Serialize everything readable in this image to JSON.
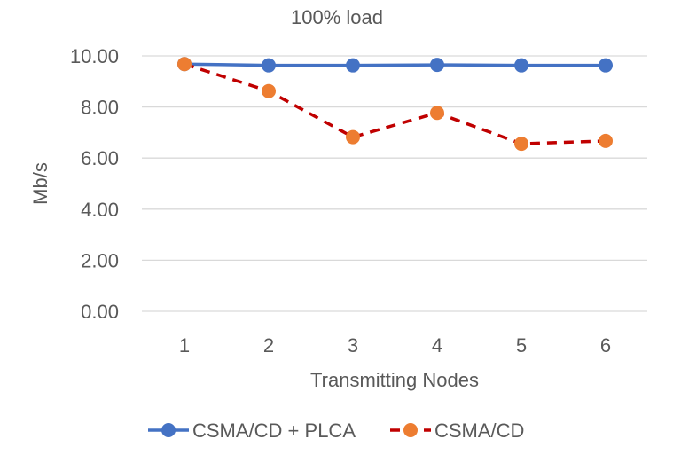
{
  "chart_data": {
    "type": "line",
    "title": "100% load",
    "xlabel": "Transmitting Nodes",
    "ylabel": "Mb/s",
    "categories": [
      "1",
      "2",
      "3",
      "4",
      "5",
      "6"
    ],
    "ylim": [
      0,
      10
    ],
    "yticks": [
      "0.00",
      "2.00",
      "4.00",
      "6.00",
      "8.00",
      "10.00"
    ],
    "grid": true,
    "legend_position": "bottom",
    "series": [
      {
        "name": "CSMA/CD + PLCA",
        "values": [
          9.68,
          9.63,
          9.63,
          9.65,
          9.63,
          9.63
        ],
        "line_color": "#4472C4",
        "marker_color": "#4472C4",
        "dash": false
      },
      {
        "name": "CSMA/CD",
        "values": [
          9.68,
          8.62,
          6.82,
          7.77,
          6.56,
          6.67
        ],
        "line_color": "#C00000",
        "marker_color": "#ED7D31",
        "dash": true
      }
    ]
  }
}
